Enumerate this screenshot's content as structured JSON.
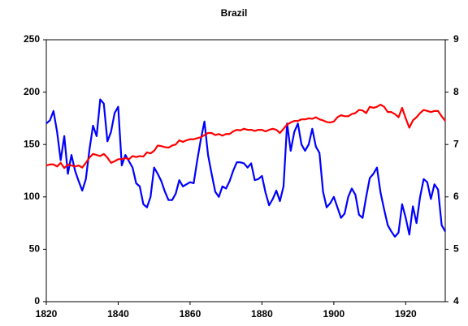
{
  "chart_data": {
    "type": "line",
    "title": "Brazil",
    "x": [
      1820,
      1821,
      1822,
      1823,
      1824,
      1825,
      1826,
      1827,
      1828,
      1829,
      1830,
      1831,
      1832,
      1833,
      1834,
      1835,
      1836,
      1837,
      1838,
      1839,
      1840,
      1841,
      1842,
      1843,
      1844,
      1845,
      1846,
      1847,
      1848,
      1849,
      1850,
      1851,
      1852,
      1853,
      1854,
      1855,
      1856,
      1857,
      1858,
      1859,
      1860,
      1861,
      1862,
      1863,
      1864,
      1865,
      1866,
      1867,
      1868,
      1869,
      1870,
      1871,
      1872,
      1873,
      1874,
      1875,
      1876,
      1877,
      1878,
      1879,
      1880,
      1881,
      1882,
      1883,
      1884,
      1885,
      1886,
      1887,
      1888,
      1889,
      1890,
      1891,
      1892,
      1893,
      1894,
      1895,
      1896,
      1897,
      1898,
      1899,
      1900,
      1901,
      1902,
      1903,
      1904,
      1905,
      1906,
      1907,
      1908,
      1909,
      1910,
      1911,
      1912,
      1913,
      1914,
      1915,
      1916,
      1917,
      1918,
      1919,
      1920,
      1921,
      1922,
      1923,
      1924,
      1925,
      1926,
      1927,
      1928,
      1929,
      1930,
      1931
    ],
    "series": [
      {
        "color": "#0000ff",
        "axis": "y",
        "values": [
          170,
          173,
          182,
          162,
          135,
          158,
          122,
          140,
          125,
          115,
          106,
          117,
          145,
          168,
          158,
          193,
          189,
          153,
          162,
          180,
          186,
          130,
          140,
          134,
          128,
          113,
          110,
          93,
          90,
          100,
          128,
          122,
          115,
          105,
          97,
          97,
          103,
          116,
          110,
          112,
          114,
          113,
          135,
          155,
          172,
          140,
          122,
          105,
          100,
          110,
          108,
          115,
          125,
          133,
          133,
          132,
          128,
          132,
          116,
          117,
          120,
          104,
          92,
          98,
          106,
          96,
          110,
          170,
          144,
          162,
          170,
          150,
          144,
          150,
          165,
          148,
          142,
          105,
          90,
          94,
          100,
          90,
          80,
          84,
          100,
          108,
          102,
          83,
          80,
          100,
          118,
          122,
          128,
          104,
          88,
          73,
          67,
          62,
          66,
          93,
          80,
          64,
          91,
          75,
          100,
          117,
          114,
          98,
          112,
          107,
          73,
          67
        ]
      },
      {
        "color": "#ff0000",
        "axis": "y2",
        "values": [
          6.6,
          6.62,
          6.62,
          6.58,
          6.65,
          6.55,
          6.62,
          6.6,
          6.58,
          6.6,
          6.56,
          6.65,
          6.75,
          6.82,
          6.8,
          6.78,
          6.82,
          6.75,
          6.65,
          6.68,
          6.72,
          6.72,
          6.74,
          6.72,
          6.78,
          6.76,
          6.78,
          6.77,
          6.85,
          6.83,
          6.88,
          6.98,
          6.97,
          6.95,
          6.94,
          6.98,
          7.0,
          7.08,
          7.05,
          7.08,
          7.1,
          7.1,
          7.12,
          7.14,
          7.18,
          7.22,
          7.22,
          7.18,
          7.2,
          7.17,
          7.2,
          7.2,
          7.25,
          7.28,
          7.27,
          7.3,
          7.28,
          7.28,
          7.26,
          7.28,
          7.28,
          7.25,
          7.28,
          7.3,
          7.28,
          7.22,
          7.3,
          7.38,
          7.42,
          7.45,
          7.45,
          7.48,
          7.48,
          7.5,
          7.49,
          7.52,
          7.48,
          7.46,
          7.43,
          7.42,
          7.44,
          7.52,
          7.56,
          7.54,
          7.54,
          7.58,
          7.6,
          7.66,
          7.65,
          7.6,
          7.72,
          7.7,
          7.72,
          7.76,
          7.72,
          7.62,
          7.62,
          7.58,
          7.52,
          7.7,
          7.5,
          7.32,
          7.46,
          7.52,
          7.6,
          7.66,
          7.64,
          7.62,
          7.64,
          7.64,
          7.54,
          7.45
        ]
      }
    ],
    "xlim": [
      1820,
      1931
    ],
    "xticks": [
      1820,
      1840,
      1860,
      1880,
      1900,
      1920
    ],
    "ylim": [
      0,
      250
    ],
    "yticks": [
      0,
      50,
      100,
      150,
      200,
      250
    ],
    "y2lim": [
      4,
      9
    ],
    "y2ticks": [
      4,
      5,
      6,
      7,
      8,
      9
    ]
  }
}
